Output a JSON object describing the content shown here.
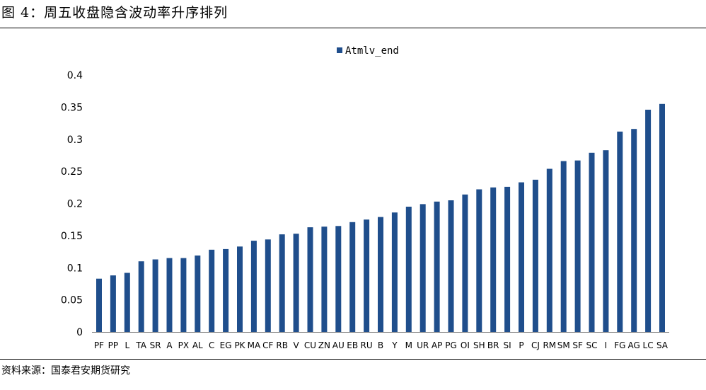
{
  "page": {
    "title": "图 4：周五收盘隐含波动率升序排列",
    "source": "资料来源：国泰君安期货研究"
  },
  "colors": {
    "bar": "#1f4e8c",
    "axis": "#808080"
  },
  "chart_data": {
    "type": "bar",
    "categories": [
      "PF",
      "PP",
      "L",
      "TA",
      "SR",
      "A",
      "PX",
      "AL",
      "C",
      "EG",
      "PK",
      "MA",
      "CF",
      "RB",
      "V",
      "CU",
      "ZN",
      "AU",
      "EB",
      "RU",
      "B",
      "Y",
      "M",
      "UR",
      "AP",
      "PG",
      "OI",
      "SH",
      "BR",
      "SI",
      "P",
      "CJ",
      "RM",
      "SM",
      "SF",
      "SC",
      "I",
      "FG",
      "AG",
      "LC",
      "SA"
    ],
    "series": [
      {
        "name": "Atmlv_end",
        "values": [
          0.083,
          0.088,
          0.092,
          0.11,
          0.113,
          0.115,
          0.115,
          0.119,
          0.128,
          0.129,
          0.133,
          0.142,
          0.144,
          0.152,
          0.153,
          0.163,
          0.164,
          0.165,
          0.171,
          0.175,
          0.179,
          0.186,
          0.195,
          0.199,
          0.203,
          0.205,
          0.214,
          0.222,
          0.225,
          0.226,
          0.233,
          0.237,
          0.254,
          0.266,
          0.267,
          0.279,
          0.283,
          0.312,
          0.316,
          0.346,
          0.355
        ]
      }
    ],
    "yticks": [
      "0",
      "0.05",
      "0.1",
      "0.15",
      "0.2",
      "0.25",
      "0.3",
      "0.35",
      "0.4"
    ],
    "ylim": [
      0,
      0.4
    ],
    "legend_position": "top-center",
    "grid": false
  }
}
